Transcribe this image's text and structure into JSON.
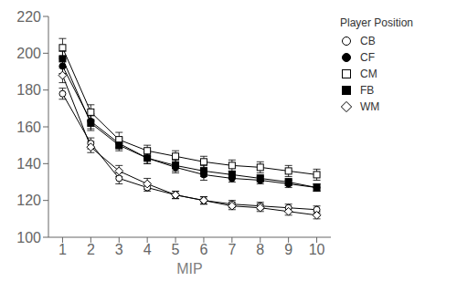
{
  "chart_data": {
    "type": "line",
    "xlabel": "MIP",
    "legend_title": "Player Position",
    "legend": "right",
    "grid": false,
    "x": [
      1,
      2,
      3,
      4,
      5,
      6,
      7,
      8,
      9,
      10
    ],
    "xlim": [
      0.5,
      10.5
    ],
    "xticks": [
      1,
      2,
      3,
      4,
      5,
      6,
      7,
      8,
      9,
      10
    ],
    "ylim": [
      100,
      220
    ],
    "yticks": [
      100,
      120,
      140,
      160,
      180,
      200,
      220
    ],
    "series": [
      {
        "name": "CB",
        "color": "#000000",
        "marker": "hollow-circle",
        "values": [
          178,
          151,
          132,
          127,
          123,
          120,
          118,
          117,
          116,
          115
        ],
        "errors": [
          3,
          3,
          3,
          2,
          2,
          2,
          2,
          2,
          2,
          2
        ]
      },
      {
        "name": "CF",
        "color": "#000000",
        "marker": "circle",
        "values": [
          193,
          163,
          151,
          143,
          138,
          134,
          132,
          131,
          129,
          127
        ],
        "errors": [
          4,
          4,
          3,
          3,
          3,
          3,
          2,
          2,
          2,
          2
        ]
      },
      {
        "name": "CM",
        "color": "#000000",
        "marker": "hollow-square",
        "values": [
          203,
          168,
          153,
          147,
          144,
          141,
          139,
          138,
          136,
          134
        ],
        "errors": [
          5,
          4,
          4,
          3,
          3,
          3,
          3,
          3,
          3,
          3
        ]
      },
      {
        "name": "FB",
        "color": "#000000",
        "marker": "square",
        "values": [
          197,
          162,
          150,
          143,
          139,
          136,
          134,
          132,
          130,
          127
        ],
        "errors": [
          4,
          4,
          3,
          3,
          3,
          3,
          2,
          2,
          2,
          2
        ]
      },
      {
        "name": "WM",
        "color": "#000000",
        "marker": "hollow-diamond",
        "values": [
          188,
          149,
          136,
          129,
          123,
          120,
          117,
          116,
          114,
          112
        ],
        "errors": [
          4,
          3,
          3,
          3,
          2,
          2,
          2,
          2,
          2,
          2
        ]
      }
    ]
  }
}
